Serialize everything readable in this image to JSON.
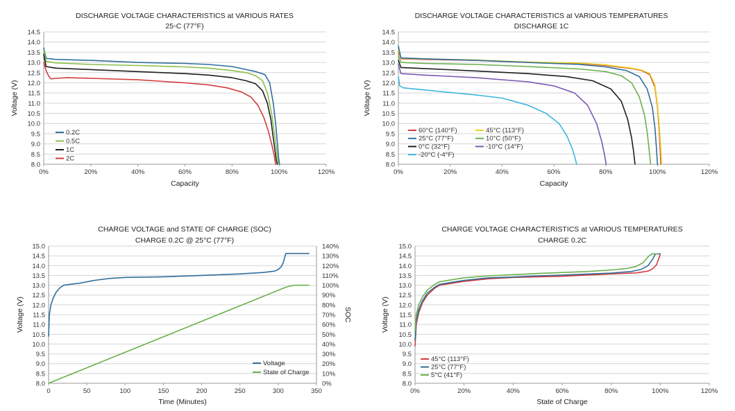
{
  "chart_data": [
    {
      "type": "line",
      "title": "DISCHARGE VOLTAGE CHARACTERISTICS at VARIOUS RATES",
      "subtitle": "25◦C (77°F)",
      "xlabel": "Capacity",
      "ylabel": "Voltage (V)",
      "xlim": [
        0,
        120
      ],
      "ylim": [
        8.0,
        14.5
      ],
      "x_ticks": [
        "0%",
        "20%",
        "40%",
        "60%",
        "80%",
        "100%",
        "120%"
      ],
      "y_ticks": [
        "8.0",
        "8.5",
        "9.0",
        "9.5",
        "10.0",
        "10.5",
        "11.0",
        "11.5",
        "12.0",
        "12.5",
        "13.0",
        "13.5",
        "14.0",
        "14.5"
      ],
      "grid": true,
      "legend_position": "bottom-left",
      "series": [
        {
          "name": "0.2C",
          "color": "#2f6e9c",
          "x": [
            0,
            1,
            5,
            20,
            40,
            60,
            70,
            80,
            86,
            90,
            94,
            96,
            97.5,
            98.5,
            99.3,
            99.8,
            100.2
          ],
          "y": [
            13.7,
            13.2,
            13.15,
            13.1,
            13.0,
            12.95,
            12.9,
            12.8,
            12.65,
            12.55,
            12.4,
            12.0,
            11.0,
            10.0,
            9.0,
            8.3,
            8.0
          ]
        },
        {
          "name": "0.5C",
          "color": "#8bbf4a",
          "x": [
            0,
            1,
            5,
            20,
            40,
            60,
            70,
            80,
            86,
            90,
            93,
            95,
            96.8,
            98,
            98.8,
            99.3,
            99.7
          ],
          "y": [
            13.6,
            13.05,
            12.98,
            12.9,
            12.85,
            12.78,
            12.72,
            12.6,
            12.5,
            12.35,
            12.1,
            11.5,
            10.5,
            9.5,
            8.8,
            8.3,
            8.0
          ]
        },
        {
          "name": "1C",
          "color": "#1e1e1e",
          "x": [
            0,
            1,
            5,
            20,
            40,
            60,
            70,
            80,
            86,
            90,
            93,
            95,
            96.5,
            97.5,
            98.2,
            98.8,
            99.2
          ],
          "y": [
            13.4,
            12.8,
            12.72,
            12.65,
            12.55,
            12.45,
            12.38,
            12.25,
            12.1,
            11.95,
            11.6,
            11.0,
            10.2,
            9.3,
            8.7,
            8.2,
            8.0
          ]
        },
        {
          "name": "2C",
          "color": "#d23c3c",
          "x": [
            0,
            1,
            2,
            3,
            4,
            5,
            10,
            20,
            40,
            60,
            70,
            78,
            84,
            88,
            91,
            93.5,
            95.5,
            96.8,
            97.8,
            98.5
          ],
          "y": [
            13.0,
            12.6,
            12.35,
            12.2,
            12.2,
            12.22,
            12.25,
            12.22,
            12.15,
            12.0,
            11.9,
            11.75,
            11.55,
            11.3,
            10.9,
            10.3,
            9.6,
            9.0,
            8.5,
            8.0
          ]
        }
      ]
    },
    {
      "type": "line",
      "title": "DISCHARGE VOLTAGE CHARACTERISTICS at VARIOUS TEMPERATURES",
      "subtitle": "DISCHARGE 1C",
      "xlabel": "Capacity",
      "ylabel": "Voltage (V)",
      "xlim": [
        0,
        120
      ],
      "ylim": [
        8.0,
        14.5
      ],
      "x_ticks": [
        "0%",
        "20%",
        "40%",
        "60%",
        "80%",
        "100%",
        "120%"
      ],
      "y_ticks": [
        "8.0",
        "8.5",
        "9.0",
        "9.5",
        "10.0",
        "10.5",
        "11.0",
        "11.5",
        "12.0",
        "12.5",
        "13.0",
        "13.5",
        "14.0",
        "14.5"
      ],
      "grid": true,
      "legend_position": "bottom-left",
      "series": [
        {
          "name": "60°C  (140°F)",
          "color": "#d23c3c",
          "x": [
            0,
            1,
            10,
            30,
            50,
            70,
            80,
            90,
            94,
            97,
            99,
            100,
            100.6,
            101,
            101.3
          ],
          "y": [
            13.5,
            13.18,
            13.15,
            13.1,
            13.0,
            12.95,
            12.85,
            12.7,
            12.6,
            12.4,
            11.8,
            10.8,
            9.8,
            8.8,
            8.0
          ]
        },
        {
          "name": "45°C  (113°F)",
          "color": "#e8d21a",
          "x": [
            0,
            1,
            10,
            30,
            50,
            70,
            80,
            90,
            94,
            97,
            99,
            100,
            100.7,
            101.2,
            101.6
          ],
          "y": [
            13.6,
            13.2,
            13.17,
            13.12,
            13.02,
            12.97,
            12.88,
            12.72,
            12.62,
            12.45,
            11.9,
            10.9,
            9.9,
            8.9,
            8.0
          ]
        },
        {
          "name": "25°C  (77°F)",
          "color": "#2f6e9c",
          "x": [
            0,
            1,
            10,
            30,
            50,
            70,
            80,
            88,
            93,
            96,
            98,
            99,
            99.6,
            100
          ],
          "y": [
            13.8,
            13.22,
            13.18,
            13.1,
            13.0,
            12.9,
            12.78,
            12.6,
            12.3,
            11.7,
            10.8,
            9.8,
            8.8,
            8.0
          ]
        },
        {
          "name": "10°C  (50°F)",
          "color": "#6ab04c",
          "x": [
            0,
            1,
            10,
            30,
            50,
            70,
            80,
            86,
            90,
            93,
            95,
            96,
            96.7,
            97.3
          ],
          "y": [
            13.3,
            13.0,
            12.95,
            12.9,
            12.8,
            12.68,
            12.55,
            12.35,
            12.0,
            11.3,
            10.4,
            9.6,
            8.8,
            8.0
          ]
        },
        {
          "name": "0°C  (32°F)",
          "color": "#1e1e1e",
          "x": [
            0,
            1,
            10,
            30,
            50,
            65,
            75,
            82,
            86,
            88.5,
            90,
            90.8,
            91.3
          ],
          "y": [
            13.1,
            12.75,
            12.7,
            12.58,
            12.45,
            12.3,
            12.1,
            11.7,
            11.1,
            10.2,
            9.3,
            8.6,
            8.0
          ]
        },
        {
          "name": "-10°C  (14°F)",
          "color": "#7a59b0",
          "x": [
            0,
            1,
            10,
            30,
            50,
            60,
            68,
            73,
            76.5,
            78.5,
            79.5,
            80.2
          ],
          "y": [
            12.9,
            12.45,
            12.38,
            12.25,
            12.05,
            11.85,
            11.5,
            10.9,
            10.0,
            9.1,
            8.5,
            8.0
          ]
        },
        {
          "name": "-20°C  (-4°F)",
          "color": "#3eb5e0",
          "x": [
            0,
            0.5,
            2,
            10,
            30,
            40,
            50,
            57,
            62,
            65,
            67,
            68,
            68.8
          ],
          "y": [
            12.3,
            11.85,
            11.75,
            11.65,
            11.4,
            11.25,
            10.9,
            10.5,
            10.0,
            9.4,
            8.8,
            8.4,
            8.0
          ]
        }
      ]
    },
    {
      "type": "line",
      "title": "CHARGE VOLTAGE and STATE OF CHARGE (SOC)",
      "subtitle": "CHARGE 0.2C @ 25°C (77°F)",
      "xlabel": "Time (Minutes)",
      "ylabel": "Voltage (V)",
      "y2label": "SOC",
      "xlim": [
        0,
        350
      ],
      "ylim": [
        8.0,
        15.0
      ],
      "y2lim": [
        0,
        140
      ],
      "x_ticks": [
        "0",
        "50",
        "100",
        "150",
        "200",
        "250",
        "300",
        "350"
      ],
      "y_ticks": [
        "8.0",
        "8.5",
        "9.0",
        "9.5",
        "10.0",
        "10.5",
        "11.0",
        "11.5",
        "12.0",
        "12.5",
        "13.0",
        "13.5",
        "14.0",
        "14.5",
        "15.0"
      ],
      "y2_ticks": [
        "0%",
        "10%",
        "20%",
        "30%",
        "40%",
        "50%",
        "60%",
        "70%",
        "80%",
        "90%",
        "100%",
        "110%",
        "120%",
        "130%",
        "140%"
      ],
      "grid": true,
      "legend_position": "bottom-right",
      "series": [
        {
          "name": "Voltage",
          "color": "#2f6e9c",
          "axis": "left",
          "x": [
            0,
            1,
            3,
            6,
            10,
            15,
            20,
            25,
            40,
            60,
            80,
            100,
            150,
            200,
            250,
            280,
            295,
            300,
            304,
            307,
            309,
            310,
            340
          ],
          "y": [
            10.4,
            11.5,
            12.0,
            12.35,
            12.65,
            12.88,
            13.0,
            13.03,
            13.1,
            13.25,
            13.35,
            13.4,
            13.43,
            13.5,
            13.58,
            13.65,
            13.72,
            13.8,
            13.95,
            14.2,
            14.5,
            14.62,
            14.62
          ]
        },
        {
          "name": "State of Charge",
          "color": "#6ab04c",
          "axis": "right",
          "x": [
            0,
            310,
            320,
            340
          ],
          "y": [
            0,
            98,
            100,
            100
          ]
        }
      ]
    },
    {
      "type": "line",
      "title": "CHARGE VOLTAGE CHARACTERISTICS at VARIOUS TEMPERATURES",
      "subtitle": "CHARGE 0.2C",
      "xlabel": "State of Charge",
      "ylabel": "Voltage (V)",
      "xlim": [
        0,
        120
      ],
      "ylim": [
        8.0,
        15.0
      ],
      "x_ticks": [
        "0%",
        "20%",
        "40%",
        "60%",
        "80%",
        "100%",
        "120%"
      ],
      "y_ticks": [
        "8.0",
        "8.5",
        "9.0",
        "9.5",
        "10.0",
        "10.5",
        "11.0",
        "11.5",
        "12.0",
        "12.5",
        "13.0",
        "13.5",
        "14.0",
        "14.5",
        "15.0"
      ],
      "grid": true,
      "legend_position": "bottom-left",
      "series": [
        {
          "name": "45°C  (113°F)",
          "color": "#d23c3c",
          "x": [
            0,
            0.5,
            1.5,
            3,
            5,
            8,
            10,
            15,
            20,
            30,
            40,
            50,
            60,
            70,
            80,
            90,
            95,
            97,
            98.5,
            99.5,
            100
          ],
          "y": [
            9.9,
            11.0,
            11.6,
            12.1,
            12.5,
            12.85,
            13.0,
            13.1,
            13.2,
            13.33,
            13.4,
            13.43,
            13.46,
            13.52,
            13.58,
            13.63,
            13.72,
            13.85,
            14.05,
            14.4,
            14.6
          ]
        },
        {
          "name": "25°C  (77°F)",
          "color": "#2f6e9c",
          "x": [
            0,
            0.5,
            1.5,
            3,
            5,
            8,
            10,
            15,
            20,
            30,
            40,
            50,
            60,
            70,
            80,
            88,
            92,
            95,
            97,
            98,
            100
          ],
          "y": [
            10.2,
            11.2,
            11.75,
            12.2,
            12.6,
            12.9,
            13.05,
            13.15,
            13.25,
            13.38,
            13.42,
            13.48,
            13.52,
            13.57,
            13.62,
            13.7,
            13.8,
            14.0,
            14.35,
            14.6,
            14.6
          ]
        },
        {
          "name": "5°C  (41°F)",
          "color": "#6ab04c",
          "x": [
            0,
            0.5,
            1.5,
            3,
            5,
            8,
            10,
            15,
            20,
            30,
            40,
            50,
            60,
            70,
            80,
            86,
            90,
            93,
            95,
            96.5,
            99
          ],
          "y": [
            10.6,
            11.5,
            12.0,
            12.4,
            12.75,
            13.05,
            13.18,
            13.28,
            13.38,
            13.48,
            13.54,
            13.6,
            13.65,
            13.7,
            13.78,
            13.85,
            13.95,
            14.15,
            14.45,
            14.6,
            14.6
          ]
        }
      ]
    }
  ]
}
